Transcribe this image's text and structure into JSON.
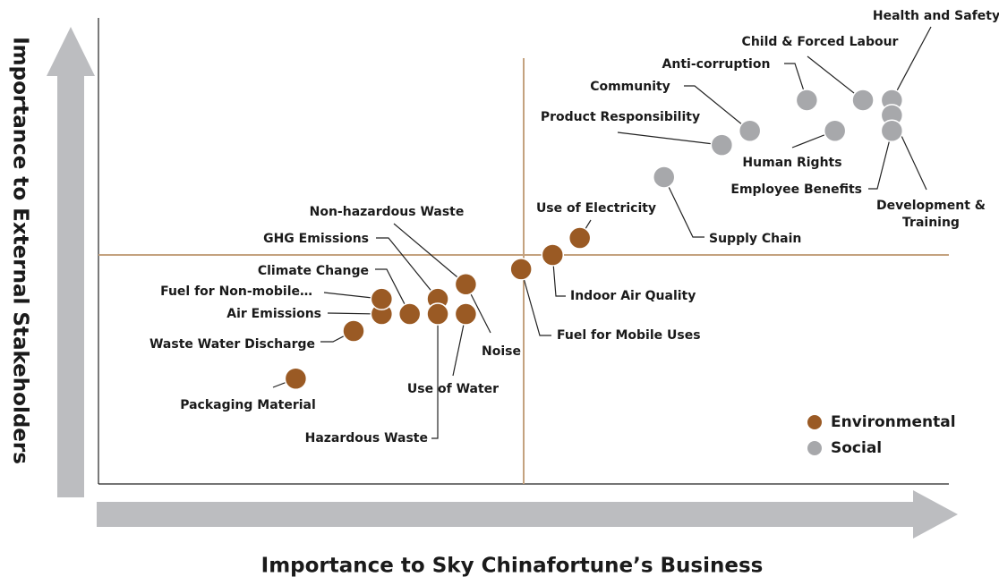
{
  "chart_data": {
    "type": "scatter",
    "xlabel": "Importance to Sky Chinafortune’s Business",
    "ylabel": "Importance to External Stakeholders",
    "xlim": [
      0,
      100
    ],
    "ylim": [
      0,
      100
    ],
    "quadrant_lines": {
      "x": 50,
      "y": 50
    },
    "legend": "lower right",
    "series": [
      {
        "name": "Environmental",
        "color": "#9a5a24",
        "labels": [
          "Packaging Material",
          "Waste Water Discharge",
          "Air Emissions",
          "Fuel for Non-mobile…",
          "Climate Change",
          "GHG Emissions",
          "Non-hazardous Waste",
          "Noise",
          "Use of Water",
          "Hazardous Waste",
          "Fuel for Mobile Uses",
          "Indoor Air Quality",
          "Use of Electricity"
        ],
        "x": [
          23.2,
          30.0,
          33.3,
          33.3,
          36.6,
          39.9,
          43.2,
          43.2,
          43.2,
          39.9,
          49.7,
          53.4,
          56.6
        ],
        "values": [
          23.0,
          33.4,
          37.1,
          40.4,
          37.1,
          40.4,
          43.6,
          43.6,
          37.1,
          37.1,
          46.9,
          50.0,
          53.7
        ]
      },
      {
        "name": "Social",
        "color": "#a7a8ab",
        "labels": [
          "Supply Chain",
          "Product Responsibility",
          "Community",
          "Anti-corruption",
          "Human Rights",
          "Child & Forced Labour",
          "Health and Safety",
          "Development &\nTraining",
          "Employee Benefits"
        ],
        "x": [
          66.5,
          73.3,
          76.6,
          83.3,
          86.6,
          89.9,
          93.3,
          93.3,
          93.3
        ],
        "values": [
          67.0,
          74.0,
          77.1,
          83.8,
          77.1,
          83.8,
          83.8,
          80.5,
          77.1
        ]
      }
    ]
  }
}
